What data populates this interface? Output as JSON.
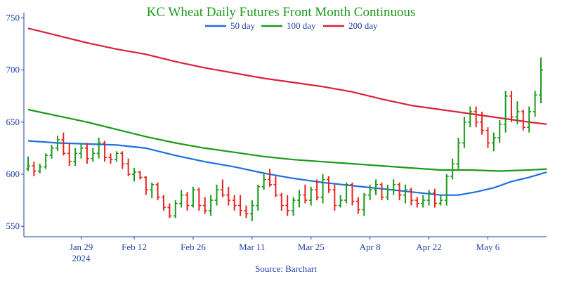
{
  "chart_data": {
    "type": "ohlc-line",
    "title": "KC Wheat Daily Futures Front Month Continuous",
    "source": "Source: Barchart",
    "ylim": [
      540,
      755
    ],
    "yticks": [
      550,
      600,
      650,
      700,
      750
    ],
    "xlabels": [
      {
        "label": "Jan 29",
        "sub": "2024",
        "index": 9
      },
      {
        "label": "Feb 12",
        "sub": "",
        "index": 18
      },
      {
        "label": "Feb 26",
        "sub": "",
        "index": 28
      },
      {
        "label": "Mar 11",
        "sub": "",
        "index": 38
      },
      {
        "label": "Mar 25",
        "sub": "",
        "index": 48
      },
      {
        "label": "Apr 8",
        "sub": "",
        "index": 58
      },
      {
        "label": "Apr 22",
        "sub": "",
        "index": 68
      },
      {
        "label": "May 6",
        "sub": "",
        "index": 78
      }
    ],
    "legend": [
      {
        "name": "50 day",
        "color": "#1f6fe0"
      },
      {
        "name": "100 day",
        "color": "#1a9a1a"
      },
      {
        "name": "200 day",
        "color": "#d8223a"
      }
    ],
    "colors": {
      "up": "#1a9a1a",
      "down": "#e8231f",
      "axis": "#1f3fa8",
      "title": "#1a9a1a"
    },
    "bars": [
      [
        605,
        617,
        603,
        608
      ],
      [
        608,
        612,
        598,
        603
      ],
      [
        603,
        610,
        601,
        607
      ],
      [
        607,
        620,
        605,
        618
      ],
      [
        618,
        628,
        615,
        625
      ],
      [
        625,
        637,
        622,
        633
      ],
      [
        633,
        640,
        618,
        620
      ],
      [
        620,
        630,
        608,
        612
      ],
      [
        612,
        625,
        608,
        620
      ],
      [
        620,
        630,
        615,
        625
      ],
      [
        625,
        630,
        610,
        615
      ],
      [
        615,
        625,
        612,
        620
      ],
      [
        620,
        635,
        615,
        630
      ],
      [
        630,
        632,
        612,
        616
      ],
      [
        616,
        620,
        610,
        614
      ],
      [
        614,
        622,
        612,
        620
      ],
      [
        620,
        622,
        605,
        610
      ],
      [
        610,
        615,
        598,
        600
      ],
      [
        600,
        606,
        593,
        602
      ],
      [
        602,
        603,
        595,
        597
      ],
      [
        597,
        598,
        580,
        585
      ],
      [
        585,
        592,
        577,
        590
      ],
      [
        590,
        592,
        575,
        578
      ],
      [
        578,
        580,
        565,
        568
      ],
      [
        568,
        572,
        558,
        560
      ],
      [
        560,
        575,
        558,
        572
      ],
      [
        572,
        585,
        568,
        580
      ],
      [
        580,
        583,
        565,
        570
      ],
      [
        570,
        588,
        568,
        585
      ],
      [
        585,
        587,
        565,
        570
      ],
      [
        570,
        578,
        562,
        565
      ],
      [
        565,
        580,
        560,
        575
      ],
      [
        575,
        590,
        570,
        585
      ],
      [
        585,
        595,
        578,
        580
      ],
      [
        580,
        588,
        570,
        575
      ],
      [
        575,
        580,
        565,
        570
      ],
      [
        570,
        580,
        560,
        565
      ],
      [
        565,
        570,
        558,
        562
      ],
      [
        562,
        575,
        555,
        570
      ],
      [
        570,
        590,
        565,
        588
      ],
      [
        588,
        600,
        585,
        595
      ],
      [
        595,
        605,
        588,
        590
      ],
      [
        590,
        598,
        578,
        580
      ],
      [
        580,
        582,
        565,
        570
      ],
      [
        570,
        580,
        560,
        565
      ],
      [
        565,
        578,
        560,
        575
      ],
      [
        575,
        585,
        568,
        580
      ],
      [
        580,
        590,
        572,
        575
      ],
      [
        575,
        588,
        570,
        585
      ],
      [
        585,
        595,
        575,
        578
      ],
      [
        578,
        600,
        572,
        595
      ],
      [
        595,
        598,
        582,
        585
      ],
      [
        585,
        590,
        565,
        570
      ],
      [
        570,
        580,
        568,
        575
      ],
      [
        575,
        592,
        572,
        590
      ],
      [
        590,
        592,
        570,
        574
      ],
      [
        574,
        578,
        562,
        566
      ],
      [
        566,
        582,
        560,
        580
      ],
      [
        580,
        590,
        575,
        585
      ],
      [
        585,
        595,
        580,
        590
      ],
      [
        590,
        592,
        575,
        578
      ],
      [
        578,
        590,
        575,
        585
      ],
      [
        585,
        595,
        580,
        590
      ],
      [
        590,
        592,
        575,
        580
      ],
      [
        580,
        590,
        572,
        585
      ],
      [
        585,
        587,
        570,
        575
      ],
      [
        575,
        578,
        568,
        572
      ],
      [
        572,
        580,
        568,
        575
      ],
      [
        575,
        585,
        570,
        582
      ],
      [
        582,
        586,
        568,
        572
      ],
      [
        572,
        580,
        570,
        575
      ],
      [
        575,
        600,
        570,
        598
      ],
      [
        598,
        615,
        595,
        610
      ],
      [
        610,
        635,
        605,
        630
      ],
      [
        630,
        655,
        625,
        650
      ],
      [
        650,
        665,
        645,
        660
      ],
      [
        660,
        665,
        645,
        650
      ],
      [
        650,
        660,
        638,
        642
      ],
      [
        642,
        645,
        625,
        630
      ],
      [
        630,
        640,
        622,
        635
      ],
      [
        635,
        652,
        630,
        648
      ],
      [
        648,
        680,
        640,
        675
      ],
      [
        675,
        680,
        650,
        655
      ],
      [
        655,
        670,
        648,
        660
      ],
      [
        660,
        662,
        642,
        645
      ],
      [
        645,
        665,
        640,
        660
      ],
      [
        660,
        680,
        655,
        676
      ],
      [
        676,
        712,
        668,
        700
      ]
    ],
    "sma50": [
      [
        0,
        632
      ],
      [
        5,
        630
      ],
      [
        10,
        629
      ],
      [
        15,
        628
      ],
      [
        20,
        625
      ],
      [
        25,
        618
      ],
      [
        30,
        612
      ],
      [
        35,
        607
      ],
      [
        40,
        601
      ],
      [
        45,
        596
      ],
      [
        50,
        592
      ],
      [
        55,
        589
      ],
      [
        60,
        586
      ],
      [
        65,
        583
      ],
      [
        70,
        580
      ],
      [
        73,
        580
      ],
      [
        76,
        583
      ],
      [
        79,
        587
      ],
      [
        82,
        593
      ],
      [
        85,
        597
      ],
      [
        88,
        602
      ]
    ],
    "sma100": [
      [
        0,
        662
      ],
      [
        5,
        656
      ],
      [
        10,
        650
      ],
      [
        15,
        643
      ],
      [
        20,
        636
      ],
      [
        25,
        630
      ],
      [
        30,
        625
      ],
      [
        35,
        621
      ],
      [
        40,
        617
      ],
      [
        45,
        614
      ],
      [
        50,
        612
      ],
      [
        55,
        610
      ],
      [
        60,
        608
      ],
      [
        65,
        606
      ],
      [
        70,
        604
      ],
      [
        75,
        604
      ],
      [
        80,
        603
      ],
      [
        85,
        604
      ],
      [
        88,
        605
      ]
    ],
    "sma200": [
      [
        0,
        740
      ],
      [
        5,
        733
      ],
      [
        10,
        726
      ],
      [
        15,
        720
      ],
      [
        20,
        715
      ],
      [
        25,
        708
      ],
      [
        30,
        702
      ],
      [
        35,
        697
      ],
      [
        40,
        692
      ],
      [
        45,
        688
      ],
      [
        50,
        684
      ],
      [
        55,
        679
      ],
      [
        60,
        672
      ],
      [
        65,
        666
      ],
      [
        70,
        662
      ],
      [
        75,
        658
      ],
      [
        80,
        654
      ],
      [
        85,
        650
      ],
      [
        88,
        648
      ]
    ]
  }
}
